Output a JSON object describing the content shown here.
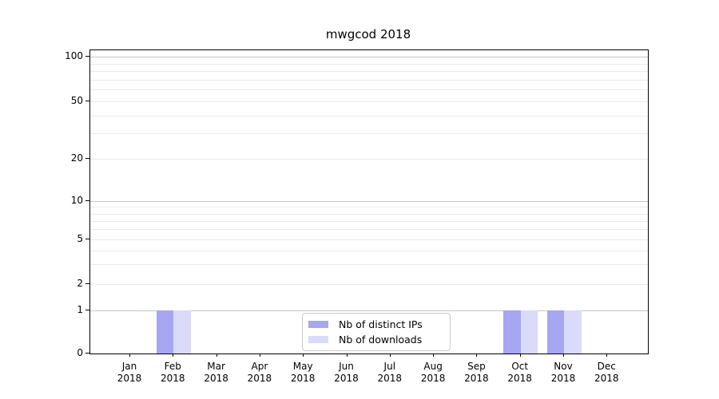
{
  "chart_data": {
    "type": "bar",
    "title": "mwgcod 2018",
    "x_labels": [
      {
        "month": "Jan",
        "year": "2018"
      },
      {
        "month": "Feb",
        "year": "2018"
      },
      {
        "month": "Mar",
        "year": "2018"
      },
      {
        "month": "Apr",
        "year": "2018"
      },
      {
        "month": "May",
        "year": "2018"
      },
      {
        "month": "Jun",
        "year": "2018"
      },
      {
        "month": "Jul",
        "year": "2018"
      },
      {
        "month": "Aug",
        "year": "2018"
      },
      {
        "month": "Sep",
        "year": "2018"
      },
      {
        "month": "Oct",
        "year": "2018"
      },
      {
        "month": "Nov",
        "year": "2018"
      },
      {
        "month": "Dec",
        "year": "2018"
      }
    ],
    "series": [
      {
        "name": "Nb of distinct IPs",
        "color": "#a6a6f2",
        "values": [
          0,
          1,
          0,
          0,
          0,
          0,
          0,
          0,
          0,
          1,
          1,
          0
        ]
      },
      {
        "name": "Nb of downloads",
        "color": "#dadafb",
        "values": [
          0,
          1,
          0,
          0,
          0,
          0,
          0,
          0,
          0,
          1,
          1,
          0
        ]
      }
    ],
    "yscale": "symlog",
    "ylim": [
      0,
      110
    ],
    "y_major_ticks": [
      0,
      1,
      2,
      5,
      10,
      20,
      50,
      100
    ],
    "y_minor_ticks": [
      3,
      4,
      6,
      7,
      8,
      9,
      30,
      40,
      60,
      70,
      80,
      90
    ],
    "grid": true,
    "legend_position": "lower center",
    "colors": {
      "decade_gridline": "#c6c6c6",
      "minor_gridline": "#eaeaea",
      "axis": "#000000",
      "background": "#ffffff",
      "text": "#000000"
    }
  }
}
